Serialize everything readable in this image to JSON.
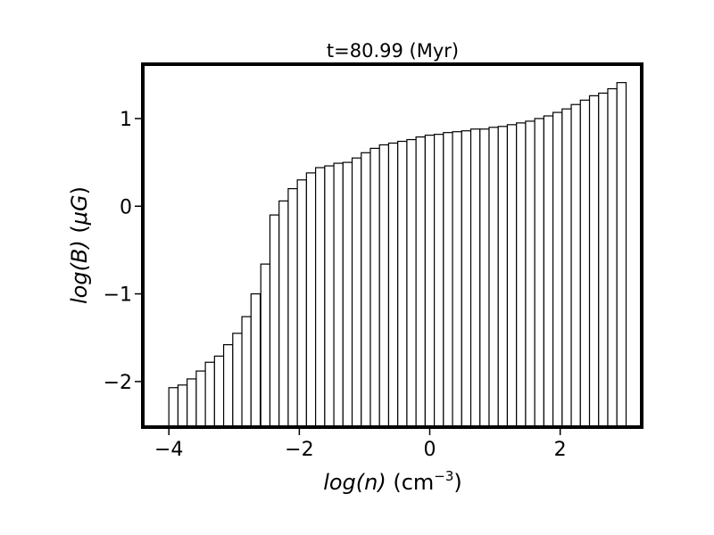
{
  "chart_data": {
    "type": "bar",
    "title": "t=80.99 (Myr)",
    "xlabel": {
      "italic": "log(n)",
      "unit_pre": " (cm",
      "unit_sup": "−3",
      "unit_post": ")"
    },
    "ylabel": {
      "italic_a": "log(B)",
      "unit_open": " (",
      "mu": "μ",
      "italic_b": "G",
      "unit_close": ")"
    },
    "xlim": [
      -4.4,
      3.25
    ],
    "ylim": [
      -2.52,
      1.62
    ],
    "bin_width": 0.141,
    "x_ticks": [
      {
        "value": -4,
        "label": "−4"
      },
      {
        "value": -2,
        "label": "−2"
      },
      {
        "value": 0,
        "label": "0"
      },
      {
        "value": 2,
        "label": "2"
      }
    ],
    "y_ticks": [
      {
        "value": -2,
        "label": "−2"
      },
      {
        "value": -1,
        "label": "−1"
      },
      {
        "value": 0,
        "label": "0"
      },
      {
        "value": 1,
        "label": "1"
      }
    ],
    "bins": [
      {
        "x": -3.93,
        "y": -2.07
      },
      {
        "x": -3.79,
        "y": -2.04
      },
      {
        "x": -3.65,
        "y": -1.97
      },
      {
        "x": -3.51,
        "y": -1.88
      },
      {
        "x": -3.37,
        "y": -1.78
      },
      {
        "x": -3.23,
        "y": -1.71
      },
      {
        "x": -3.09,
        "y": -1.58
      },
      {
        "x": -2.95,
        "y": -1.45
      },
      {
        "x": -2.81,
        "y": -1.26
      },
      {
        "x": -2.67,
        "y": -1.0
      },
      {
        "x": -2.52,
        "y": -0.66
      },
      {
        "x": -2.38,
        "y": -0.1
      },
      {
        "x": -2.24,
        "y": 0.06
      },
      {
        "x": -2.1,
        "y": 0.2
      },
      {
        "x": -1.96,
        "y": 0.3
      },
      {
        "x": -1.82,
        "y": 0.38
      },
      {
        "x": -1.68,
        "y": 0.44
      },
      {
        "x": -1.54,
        "y": 0.46
      },
      {
        "x": -1.4,
        "y": 0.49
      },
      {
        "x": -1.26,
        "y": 0.5
      },
      {
        "x": -1.12,
        "y": 0.55
      },
      {
        "x": -0.98,
        "y": 0.61
      },
      {
        "x": -0.84,
        "y": 0.66
      },
      {
        "x": -0.7,
        "y": 0.7
      },
      {
        "x": -0.56,
        "y": 0.72
      },
      {
        "x": -0.42,
        "y": 0.74
      },
      {
        "x": -0.28,
        "y": 0.76
      },
      {
        "x": -0.14,
        "y": 0.79
      },
      {
        "x": 0.0,
        "y": 0.81
      },
      {
        "x": 0.14,
        "y": 0.82
      },
      {
        "x": 0.28,
        "y": 0.84
      },
      {
        "x": 0.42,
        "y": 0.85
      },
      {
        "x": 0.56,
        "y": 0.86
      },
      {
        "x": 0.7,
        "y": 0.88
      },
      {
        "x": 0.84,
        "y": 0.88
      },
      {
        "x": 0.98,
        "y": 0.9
      },
      {
        "x": 1.12,
        "y": 0.91
      },
      {
        "x": 1.26,
        "y": 0.93
      },
      {
        "x": 1.4,
        "y": 0.95
      },
      {
        "x": 1.54,
        "y": 0.97
      },
      {
        "x": 1.68,
        "y": 1.0
      },
      {
        "x": 1.82,
        "y": 1.03
      },
      {
        "x": 1.96,
        "y": 1.07
      },
      {
        "x": 2.1,
        "y": 1.11
      },
      {
        "x": 2.24,
        "y": 1.16
      },
      {
        "x": 2.38,
        "y": 1.21
      },
      {
        "x": 2.52,
        "y": 1.26
      },
      {
        "x": 2.66,
        "y": 1.29
      },
      {
        "x": 2.8,
        "y": 1.34
      },
      {
        "x": 2.94,
        "y": 1.41
      }
    ],
    "baseline": -2.52,
    "bar_fill": "#ffffff",
    "bar_edge": "#000000",
    "grid": false,
    "legend": "none"
  }
}
